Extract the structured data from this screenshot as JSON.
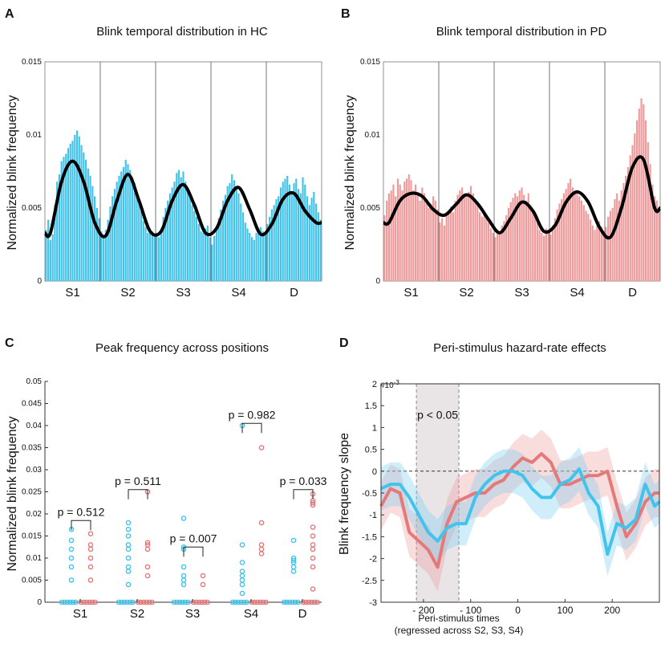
{
  "colors": {
    "hc": "#42c3ec",
    "pd": "#e5797a",
    "pd_bar": "#ef9a9b",
    "fit": "#000000",
    "window": "#e9e4e6"
  },
  "chart_data": [
    {
      "panel": "A",
      "type": "bar",
      "title": "Blink temporal distribution in HC",
      "ylabel": "Normalized blink frequency",
      "ylim": [
        0,
        0.015
      ],
      "yticks": [
        "0",
        "0.005",
        "0.01",
        "0.015"
      ],
      "categories": [
        "S1",
        "S2",
        "S3",
        "S4",
        "D"
      ],
      "series_name": "HC",
      "segments": [
        {
          "values": [
            0.0035,
            0.0042,
            0.0028,
            0.0032,
            0.0052,
            0.0068,
            0.0073,
            0.0082,
            0.0085,
            0.0087,
            0.0091,
            0.0094,
            0.0096,
            0.01,
            0.0103,
            0.0099,
            0.0093,
            0.0088,
            0.0083,
            0.0077,
            0.0072,
            0.0065,
            0.0058,
            0.005,
            0.0043
          ]
        },
        {
          "values": [
            0.0034,
            0.0031,
            0.0035,
            0.0042,
            0.0051,
            0.0058,
            0.0063,
            0.0068,
            0.0072,
            0.0075,
            0.0078,
            0.0083,
            0.008,
            0.0076,
            0.0071,
            0.0067,
            0.006,
            0.0054,
            0.0048,
            0.0041,
            0.0037,
            0.0033,
            0.0036,
            0.0034,
            0.0032
          ]
        },
        {
          "values": [
            0.0033,
            0.003,
            0.0036,
            0.0044,
            0.005,
            0.0055,
            0.006,
            0.0064,
            0.0068,
            0.0074,
            0.0076,
            0.0071,
            0.0075,
            0.0068,
            0.0063,
            0.0058,
            0.0052,
            0.0048,
            0.0044,
            0.0039,
            0.0034,
            0.0033,
            0.0036,
            0.0038,
            0.003
          ]
        },
        {
          "values": [
            0.0025,
            0.0031,
            0.0037,
            0.0043,
            0.0049,
            0.0055,
            0.0059,
            0.0065,
            0.0067,
            0.0073,
            0.0069,
            0.0064,
            0.006,
            0.0053,
            0.0047,
            0.004,
            0.0036,
            0.0033,
            0.003,
            0.0028,
            0.0033,
            0.0036,
            0.0037,
            0.0034,
            0.0031
          ]
        },
        {
          "values": [
            0.0039,
            0.0044,
            0.0049,
            0.0052,
            0.0056,
            0.0058,
            0.0064,
            0.0068,
            0.007,
            0.0072,
            0.0066,
            0.0061,
            0.0067,
            0.007,
            0.0063,
            0.006,
            0.0071,
            0.0066,
            0.0058,
            0.0052,
            0.0057,
            0.0061,
            0.0053,
            0.0047,
            0.0042
          ]
        }
      ],
      "fit": [
        0.0033,
        0.0068,
        0.0082,
        0.0068,
        0.004,
        0.0031,
        0.0055,
        0.0073,
        0.0055,
        0.0034,
        0.0034,
        0.0055,
        0.0066,
        0.0052,
        0.0033,
        0.0036,
        0.0055,
        0.0064,
        0.0049,
        0.0032,
        0.0039,
        0.0056,
        0.006,
        0.0048,
        0.004
      ]
    },
    {
      "panel": "B",
      "type": "bar",
      "title": "Blink temporal distribution in PD",
      "ylabel": "Normalized blink frequency",
      "ylim": [
        0,
        0.015
      ],
      "yticks": [
        "0",
        "0.005",
        "0.01",
        "0.015"
      ],
      "categories": [
        "S1",
        "S2",
        "S3",
        "S4",
        "D"
      ],
      "series_name": "PD",
      "segments": [
        {
          "values": [
            0.0045,
            0.0055,
            0.006,
            0.0062,
            0.0066,
            0.0058,
            0.007,
            0.0066,
            0.0062,
            0.0068,
            0.007,
            0.0073,
            0.0069,
            0.0062,
            0.0066,
            0.0059,
            0.0055,
            0.0064,
            0.006,
            0.0056,
            0.005,
            0.0053,
            0.0058,
            0.0055,
            0.0049
          ]
        },
        {
          "values": [
            0.004,
            0.0043,
            0.0038,
            0.0046,
            0.0048,
            0.0051,
            0.0047,
            0.0055,
            0.0059,
            0.0062,
            0.0064,
            0.006,
            0.0058,
            0.0061,
            0.0065,
            0.006,
            0.0055,
            0.0052,
            0.0047,
            0.0044,
            0.0048,
            0.0044,
            0.004,
            0.0036,
            0.0033
          ]
        },
        {
          "values": [
            0.003,
            0.0035,
            0.0032,
            0.0038,
            0.0041,
            0.0045,
            0.005,
            0.0054,
            0.0057,
            0.006,
            0.0058,
            0.0062,
            0.0064,
            0.0059,
            0.0055,
            0.006,
            0.0052,
            0.0048,
            0.0044,
            0.004,
            0.0035,
            0.0033,
            0.0031,
            0.0036,
            0.0034
          ]
        },
        {
          "values": [
            0.0032,
            0.0038,
            0.0043,
            0.0049,
            0.0053,
            0.0056,
            0.006,
            0.0063,
            0.0067,
            0.007,
            0.0064,
            0.006,
            0.0062,
            0.0058,
            0.0055,
            0.0052,
            0.0048,
            0.0046,
            0.0042,
            0.0038,
            0.0035,
            0.0038,
            0.0041,
            0.0037,
            0.0034
          ]
        },
        {
          "values": [
            0.0037,
            0.0044,
            0.0048,
            0.005,
            0.0056,
            0.006,
            0.0055,
            0.0062,
            0.0067,
            0.0072,
            0.0078,
            0.0086,
            0.0093,
            0.0101,
            0.011,
            0.0118,
            0.0125,
            0.0121,
            0.011,
            0.0095,
            0.008,
            0.0066,
            0.0058,
            0.0055,
            0.005
          ]
        }
      ],
      "fit": [
        0.004,
        0.0055,
        0.006,
        0.0058,
        0.0049,
        0.0045,
        0.0052,
        0.0059,
        0.0053,
        0.0042,
        0.0033,
        0.0043,
        0.0054,
        0.0048,
        0.0034,
        0.0038,
        0.0054,
        0.0061,
        0.0054,
        0.0037,
        0.003,
        0.005,
        0.0078,
        0.0083,
        0.005
      ]
    },
    {
      "panel": "C",
      "type": "scatter",
      "title": "Peak frequency across positions",
      "ylabel": "Normalized blink frequency",
      "ylim": [
        0,
        0.05
      ],
      "yticks": [
        "0",
        "0.005",
        "0.01",
        "0.015",
        "0.02",
        "0.025",
        "0.03",
        "0.035",
        "0.04",
        "0.045",
        "0.05"
      ],
      "categories": [
        "S1",
        "S2",
        "S3",
        "S4",
        "D"
      ],
      "series": [
        {
          "name": "HC",
          "groups": [
            [
              0,
              0,
              0,
              0,
              0,
              0,
              0.005,
              0.008,
              0.01,
              0.012,
              0.014,
              0.0165
            ],
            [
              0,
              0,
              0,
              0,
              0,
              0,
              0.004,
              0.007,
              0.008,
              0.01,
              0.012,
              0.013,
              0.015,
              0.0165,
              0.018
            ],
            [
              0,
              0,
              0,
              0,
              0,
              0,
              0.004,
              0.005,
              0.006,
              0.008,
              0.012,
              0.0125,
              0.019
            ],
            [
              0,
              0,
              0,
              0,
              0,
              0,
              0.002,
              0.004,
              0.005,
              0.006,
              0.007,
              0.009,
              0.013,
              0.04
            ],
            [
              0,
              0,
              0,
              0,
              0,
              0,
              0.007,
              0.008,
              0.009,
              0.0095,
              0.01,
              0.014
            ]
          ]
        },
        {
          "name": "PD",
          "groups": [
            [
              0,
              0,
              0,
              0,
              0,
              0,
              0.005,
              0.008,
              0.01,
              0.012,
              0.013,
              0.0155
            ],
            [
              0,
              0,
              0,
              0,
              0,
              0,
              0.006,
              0.008,
              0.012,
              0.013,
              0.0135,
              0.025
            ],
            [
              0,
              0,
              0,
              0,
              0,
              0,
              0.004,
              0.006
            ],
            [
              0,
              0,
              0,
              0,
              0,
              0,
              0.011,
              0.012,
              0.013,
              0.018,
              0.035
            ],
            [
              0,
              0,
              0,
              0,
              0,
              0,
              0.003,
              0.008,
              0.01,
              0.012,
              0.013,
              0.015,
              0.017,
              0.022,
              0.0225,
              0.023,
              0.0245
            ]
          ]
        }
      ],
      "pvalues": [
        "p = 0.512",
        "p = 0.511",
        "p = 0.007",
        "p = 0.982",
        "p = 0.033"
      ],
      "bracket_heights": [
        0.0185,
        0.0255,
        0.0125,
        0.0405,
        0.0255
      ]
    },
    {
      "panel": "D",
      "type": "line",
      "title": "Peri-stimulus hazard-rate effects",
      "ylabel": "Blink frequency slope",
      "xlabel": "Peri-stimulus times",
      "xlabel_sub": "(regressed across S2, S3, S4)",
      "exponent": "#10",
      "exponent_power": "-3",
      "xlim": [
        -290,
        300
      ],
      "ylim": [
        -3,
        2
      ],
      "xticks": [
        -200,
        -100,
        0,
        100,
        200
      ],
      "xtick_labels": [
        "- 200",
        "- 100",
        "0",
        "100",
        "200"
      ],
      "yticks": [
        "-3",
        "-2.5",
        "-2",
        "-1.5",
        "-1",
        "-0.5",
        "0",
        "0.5",
        "1",
        "1.5",
        "2"
      ],
      "significance_window": [
        -215,
        -125
      ],
      "annotation": "p < 0.05",
      "x": [
        -290,
        -270,
        -250,
        -230,
        -210,
        -190,
        -170,
        -150,
        -130,
        -110,
        -90,
        -70,
        -50,
        -30,
        -10,
        10,
        30,
        50,
        70,
        90,
        110,
        130,
        150,
        170,
        190,
        210,
        230,
        250,
        270,
        290,
        300
      ],
      "series": [
        {
          "name": "PD",
          "values": [
            -0.8,
            -0.4,
            -0.5,
            -1.4,
            -1.6,
            -1.8,
            -2.2,
            -1.2,
            -0.7,
            -0.6,
            -0.5,
            -0.5,
            -0.3,
            -0.2,
            0.1,
            0.3,
            0.2,
            0.4,
            0.2,
            -0.3,
            -0.3,
            -0.2,
            -0.1,
            -0.1,
            0.0,
            -0.8,
            -1.5,
            -1.2,
            -0.7,
            -0.5,
            -0.5
          ],
          "band": 0.55
        },
        {
          "name": "HC",
          "values": [
            -0.4,
            -0.3,
            -0.3,
            -0.6,
            -1.0,
            -1.4,
            -1.6,
            -1.3,
            -1.2,
            -1.2,
            -0.6,
            -0.3,
            -0.1,
            0.0,
            0.0,
            -0.1,
            -0.4,
            -0.6,
            -0.6,
            -0.3,
            -0.2,
            0.05,
            -0.5,
            -0.8,
            -1.9,
            -1.2,
            -1.3,
            -1.1,
            -0.3,
            -0.8,
            -0.7
          ],
          "band": 0.5
        }
      ]
    }
  ]
}
